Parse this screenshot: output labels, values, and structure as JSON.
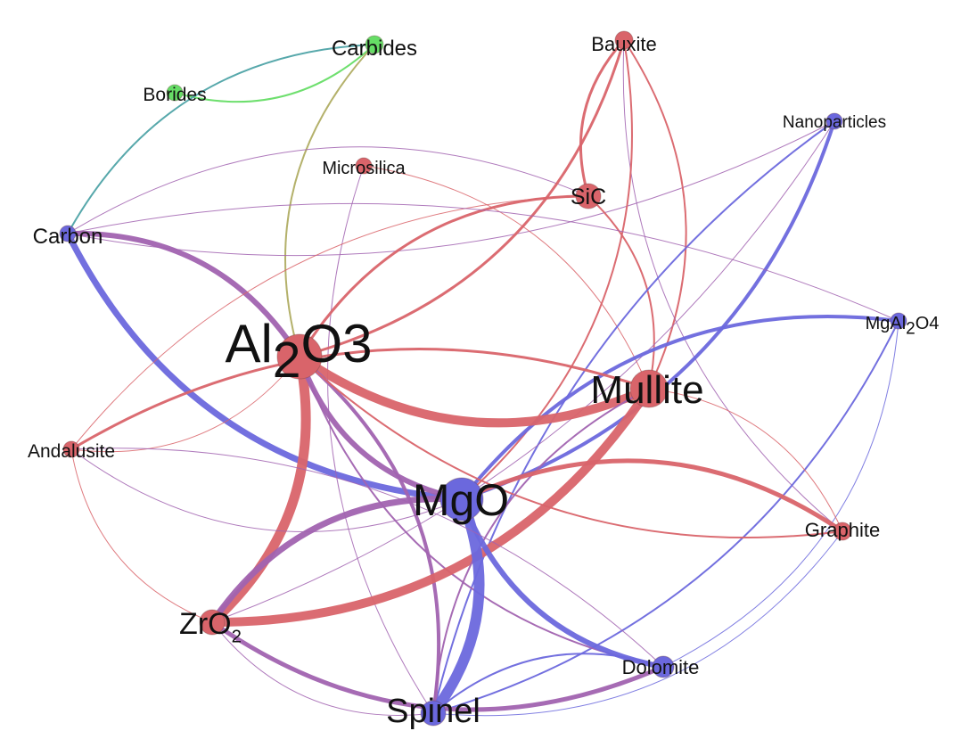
{
  "colors": {
    "red": "#d9646a",
    "blue": "#6b68dd",
    "purple": "#a163b0",
    "green": "#66dd66",
    "teal": "#4ea3a6",
    "olive": "#b0ad63"
  },
  "nodes": [
    {
      "id": "Carbides",
      "label": "Carbides",
      "color": "green"
    },
    {
      "id": "Bauxite",
      "label": "Bauxite",
      "color": "red"
    },
    {
      "id": "Borides",
      "label": "Borides",
      "color": "green"
    },
    {
      "id": "Nanoparticles",
      "label": "Nanoparticles",
      "color": "blue"
    },
    {
      "id": "Microsilica",
      "label": "Microsilica",
      "color": "red"
    },
    {
      "id": "SiC",
      "label": "SiC",
      "color": "red"
    },
    {
      "id": "Carbon",
      "label": "Carbon",
      "color": "blue"
    },
    {
      "id": "MgAl2O4",
      "label": "MgAl",
      "sub": "2",
      "label_after": "O4",
      "color": "blue"
    },
    {
      "id": "Al2O3",
      "label": "Al",
      "sub": "2",
      "label_after": "O3",
      "color": "red"
    },
    {
      "id": "Mullite",
      "label": "Mullite",
      "color": "red"
    },
    {
      "id": "Andalusite",
      "label": "Andalusite",
      "color": "red"
    },
    {
      "id": "MgO",
      "label": "MgO",
      "color": "blue"
    },
    {
      "id": "Graphite",
      "label": "Graphite",
      "color": "red"
    },
    {
      "id": "ZrO2",
      "label": "ZrO",
      "sub": "2",
      "label_after": "",
      "color": "red"
    },
    {
      "id": "Dolomite",
      "label": "Dolomite",
      "color": "blue"
    },
    {
      "id": "Spinel",
      "label": "Spinel",
      "color": "blue"
    }
  ],
  "edges": [
    {
      "source": "Borides",
      "target": "Carbides",
      "weight": 2,
      "color": "green"
    },
    {
      "source": "Carbon",
      "target": "Carbides",
      "weight": 2,
      "color": "teal"
    },
    {
      "source": "Carbides",
      "target": "Al2O3",
      "weight": 2,
      "color": "olive"
    },
    {
      "source": "Carbon",
      "target": "Al2O3",
      "weight": 6,
      "color": "purple"
    },
    {
      "source": "Carbon",
      "target": "MgO",
      "weight": 7,
      "color": "blue"
    },
    {
      "source": "Carbon",
      "target": "SiC",
      "weight": 1,
      "color": "purple"
    },
    {
      "source": "Carbon",
      "target": "Nanoparticles",
      "weight": 1,
      "color": "purple"
    },
    {
      "source": "Microsilica",
      "target": "Mullite",
      "weight": 1,
      "color": "red"
    },
    {
      "source": "Microsilica",
      "target": "Spinel",
      "weight": 1,
      "color": "purple"
    },
    {
      "source": "Bauxite",
      "target": "Al2O3",
      "weight": 3,
      "color": "red"
    },
    {
      "source": "Bauxite",
      "target": "SiC",
      "weight": 3,
      "color": "red"
    },
    {
      "source": "Bauxite",
      "target": "Mullite",
      "weight": 2,
      "color": "red"
    },
    {
      "source": "Bauxite",
      "target": "Graphite",
      "weight": 1,
      "color": "purple"
    },
    {
      "source": "Bauxite",
      "target": "MgO",
      "weight": 2,
      "color": "red"
    },
    {
      "source": "SiC",
      "target": "Al2O3",
      "weight": 3,
      "color": "red"
    },
    {
      "source": "SiC",
      "target": "Mullite",
      "weight": 2,
      "color": "red"
    },
    {
      "source": "SiC",
      "target": "Andalusite",
      "weight": 1,
      "color": "red"
    },
    {
      "source": "Nanoparticles",
      "target": "MgO",
      "weight": 4,
      "color": "blue"
    },
    {
      "source": "Nanoparticles",
      "target": "Spinel",
      "weight": 2,
      "color": "blue"
    },
    {
      "source": "Nanoparticles",
      "target": "ZrO2",
      "weight": 1,
      "color": "purple"
    },
    {
      "source": "MgAl2O4",
      "target": "MgO",
      "weight": 4,
      "color": "blue"
    },
    {
      "source": "MgAl2O4",
      "target": "Spinel",
      "weight": 2,
      "color": "blue"
    },
    {
      "source": "MgAl2O4",
      "target": "Carbon",
      "weight": 1,
      "color": "purple"
    },
    {
      "source": "MgAl2O4",
      "target": "Dolomite",
      "weight": 1,
      "color": "blue"
    },
    {
      "source": "Al2O3",
      "target": "Mullite",
      "weight": 10,
      "color": "red"
    },
    {
      "source": "Al2O3",
      "target": "ZrO2",
      "weight": 11,
      "color": "red"
    },
    {
      "source": "Al2O3",
      "target": "MgO",
      "weight": 6,
      "color": "purple"
    },
    {
      "source": "Al2O3",
      "target": "Spinel",
      "weight": 4,
      "color": "purple"
    },
    {
      "source": "Al2O3",
      "target": "Dolomite",
      "weight": 2,
      "color": "purple"
    },
    {
      "source": "Al2O3",
      "target": "Andalusite",
      "weight": 1,
      "color": "red"
    },
    {
      "source": "Al2O3",
      "target": "Graphite",
      "weight": 2,
      "color": "red"
    },
    {
      "source": "Mullite",
      "target": "ZrO2",
      "weight": 10,
      "color": "red"
    },
    {
      "source": "Mullite",
      "target": "Andalusite",
      "weight": 3,
      "color": "red"
    },
    {
      "source": "Mullite",
      "target": "Graphite",
      "weight": 1,
      "color": "red"
    },
    {
      "source": "Mullite",
      "target": "Spinel",
      "weight": 2,
      "color": "purple"
    },
    {
      "source": "MgO",
      "target": "Spinel",
      "weight": 12,
      "color": "blue"
    },
    {
      "source": "MgO",
      "target": "Dolomite",
      "weight": 6,
      "color": "blue"
    },
    {
      "source": "MgO",
      "target": "Graphite",
      "weight": 5,
      "color": "red"
    },
    {
      "source": "MgO",
      "target": "ZrO2",
      "weight": 7,
      "color": "purple"
    },
    {
      "source": "MgO",
      "target": "Andalusite",
      "weight": 1,
      "color": "purple"
    },
    {
      "source": "ZrO2",
      "target": "Dolomite",
      "weight": 5,
      "color": "purple"
    },
    {
      "source": "ZrO2",
      "target": "Andalusite",
      "weight": 1,
      "color": "red"
    },
    {
      "source": "ZrO2",
      "target": "Spinel",
      "weight": 1,
      "color": "purple"
    },
    {
      "source": "Graphite",
      "target": "Spinel",
      "weight": 1,
      "color": "blue"
    },
    {
      "source": "Dolomite",
      "target": "Spinel",
      "weight": 2,
      "color": "blue"
    },
    {
      "source": "Andalusite",
      "target": "Dolomite",
      "weight": 1,
      "color": "purple"
    }
  ]
}
